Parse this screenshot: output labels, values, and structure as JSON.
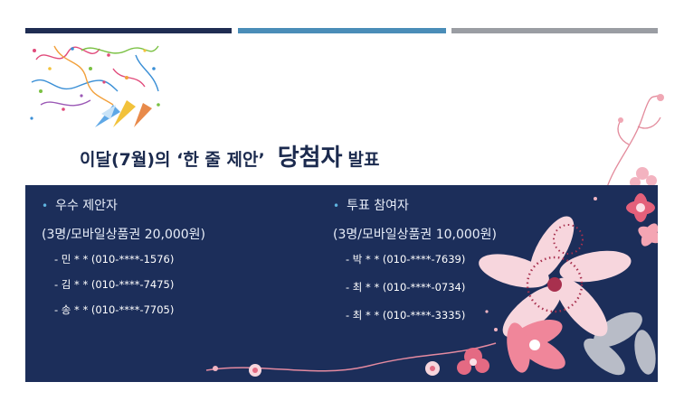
{
  "header": {
    "title_main": "이달(7월)의 ‘한 줄 제안’",
    "title_emphasis": "당첨자",
    "title_suffix": "발표"
  },
  "colors": {
    "navy": "#1c2e5a",
    "bar_navy": "#1f2d52",
    "bar_blue": "#4a8db8",
    "bar_gray": "#9a9da3",
    "bullet": "#5fb4e0"
  },
  "icons": [
    "confetti-icon",
    "flower-decoration"
  ],
  "sections": {
    "excellent": {
      "heading": "우수 제안자",
      "prize": "(3명/모바일상품권 20,000원)",
      "entries": [
        "- 민 * * (010-****-1576)",
        "- 김 * * (010-****-7475)",
        "- 송 * * (010-****-7705)"
      ]
    },
    "voters": {
      "heading": "투표 참여자",
      "prize": "(3명/모바일상품권 10,000원)",
      "entries": [
        "- 박 * * (010-****-7639)",
        "- 최 * * (010-****-0734)",
        "- 최 * * (010-****-3335)"
      ]
    }
  }
}
